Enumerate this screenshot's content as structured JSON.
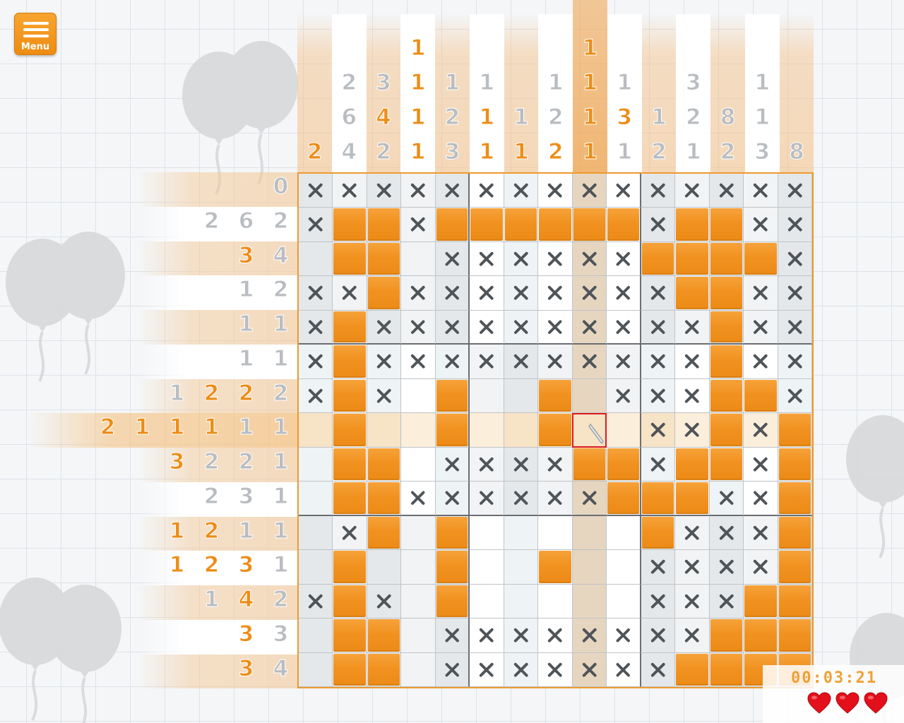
{
  "menu": {
    "label": "Menu",
    "icon": "hamburger-icon"
  },
  "timer": "00:03:21",
  "lives": 3,
  "colors": {
    "accent": "#ee8c16",
    "filled": "#f19220",
    "hint_grey": "#b9bdc1",
    "cursor": "#e01b1b",
    "heart": "#e3101b"
  },
  "column_clues": [
    [
      "2"
    ],
    [
      "2",
      "6",
      "4"
    ],
    [
      "3",
      "4",
      "2"
    ],
    [
      "1",
      "1",
      "1",
      "1"
    ],
    [
      "1",
      "2",
      "3"
    ],
    [
      "1",
      "1",
      "1"
    ],
    [
      "1",
      "1"
    ],
    [
      "1",
      "2",
      "2"
    ],
    [
      "1",
      "1",
      "1",
      "1"
    ],
    [
      "1",
      "3",
      "1"
    ],
    [
      "1",
      "2"
    ],
    [
      "3",
      "2",
      "1"
    ],
    [
      "8",
      "2"
    ],
    [
      "1",
      "1",
      "3"
    ],
    [
      "8"
    ]
  ],
  "column_clue_orange": [
    [
      true
    ],
    [
      false,
      false,
      false
    ],
    [
      false,
      true,
      false
    ],
    [
      true,
      true,
      true,
      true
    ],
    [
      false,
      false,
      false
    ],
    [
      false,
      true,
      true
    ],
    [
      false,
      true
    ],
    [
      false,
      false,
      true
    ],
    [
      true,
      true,
      true,
      true
    ],
    [
      false,
      true,
      false
    ],
    [
      false,
      false
    ],
    [
      false,
      false,
      false
    ],
    [
      false,
      false
    ],
    [
      false,
      false,
      false
    ],
    [
      false
    ]
  ],
  "row_clues": [
    [
      "0"
    ],
    [
      "2",
      "6",
      "2"
    ],
    [
      "3",
      "4"
    ],
    [
      "1",
      "2"
    ],
    [
      "1",
      "1"
    ],
    [
      "1",
      "1"
    ],
    [
      "1",
      "2",
      "2",
      "2"
    ],
    [
      "2",
      "1",
      "1",
      "1",
      "1",
      "1"
    ],
    [
      "3",
      "2",
      "2",
      "1"
    ],
    [
      "2",
      "3",
      "1"
    ],
    [
      "1",
      "2",
      "1",
      "1"
    ],
    [
      "1",
      "2",
      "3",
      "1"
    ],
    [
      "1",
      "4",
      "2"
    ],
    [
      "3",
      "3"
    ],
    [
      "3",
      "4"
    ]
  ],
  "row_clue_orange": [
    [
      false
    ],
    [
      false,
      false,
      false
    ],
    [
      true,
      false
    ],
    [
      false,
      false
    ],
    [
      false,
      false
    ],
    [
      false,
      false
    ],
    [
      false,
      true,
      true,
      false
    ],
    [
      true,
      true,
      true,
      true,
      false,
      false
    ],
    [
      true,
      false,
      false,
      false
    ],
    [
      false,
      false,
      false
    ],
    [
      true,
      true,
      false,
      false
    ],
    [
      true,
      true,
      true,
      false
    ],
    [
      false,
      true,
      false
    ],
    [
      true,
      false
    ],
    [
      true,
      false
    ]
  ],
  "highlight": {
    "row": 7,
    "col": 8
  },
  "cursor_cell": {
    "row": 7,
    "col": 8
  },
  "grid": [
    "XXXXXXXXXXXXXXX",
    "X##X######X##XX",
    ".##.XXXXXX####X",
    "XX#XXXXXXXX##XX",
    "X#XXXXXXXXXX#XX",
    "X#XXXXXXXXXX#XX",
    "X#X.#..#.XXX##X",
    ".#..#..#..XX#X#",
    ".##.XXXX##X##X#",
    ".##XXXXXX###XX#",
    ".X#.#.....#XXX#",
    ".#..#..#..XXXX#",
    "X#X.#.....XXX##",
    ".##.XXXXXXXX###",
    ".##.XXXXXXX####"
  ],
  "grid_legend": {
    "#": "filled",
    "X": "crossed",
    ".": "empty"
  }
}
